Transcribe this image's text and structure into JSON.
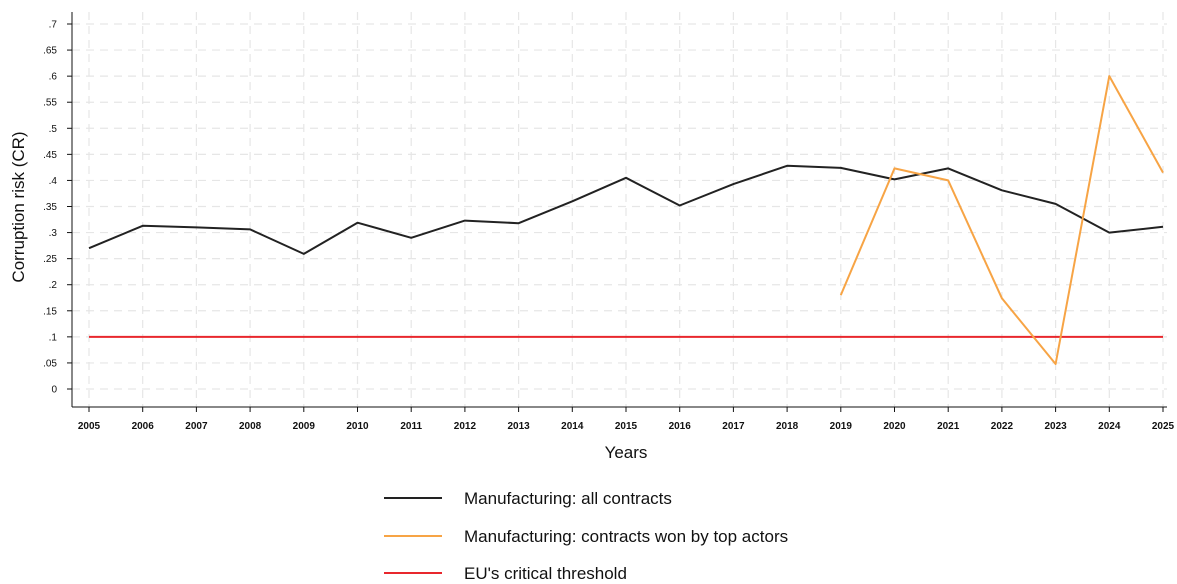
{
  "chart_data": {
    "type": "line",
    "title": "",
    "xlabel": "Years",
    "ylabel": "Corruption risk (CR)",
    "x": [
      2005,
      2006,
      2007,
      2008,
      2009,
      2010,
      2011,
      2012,
      2013,
      2014,
      2015,
      2016,
      2017,
      2018,
      2019,
      2020,
      2021,
      2022,
      2023,
      2024,
      2025
    ],
    "x_tick_labels": [
      "2005",
      "2006",
      "2007",
      "2008",
      "2009",
      "2010",
      "2011",
      "2012",
      "2013",
      "2014",
      "2015",
      "2016",
      "2017",
      "2018",
      "2019",
      "2020",
      "2021",
      "2022",
      "2023",
      "2024",
      "2025"
    ],
    "xlim": [
      2005,
      2025
    ],
    "ylim": [
      0,
      0.7
    ],
    "y_ticks": [
      0,
      0.05,
      0.1,
      0.15,
      0.2,
      0.25,
      0.3,
      0.35,
      0.4,
      0.45,
      0.5,
      0.55,
      0.6,
      0.65,
      0.7
    ],
    "y_tick_labels": [
      "0",
      ".05",
      ".1",
      ".15",
      ".2",
      ".25",
      ".3",
      ".35",
      ".4",
      ".45",
      ".5",
      ".55",
      ".6",
      ".65",
      ".7"
    ],
    "grid": true,
    "legend_position": "bottom",
    "series": [
      {
        "name": "Manufacturing: all contracts",
        "color": "#222222",
        "x": [
          2005,
          2006,
          2007,
          2008,
          2009,
          2010,
          2011,
          2012,
          2013,
          2014,
          2015,
          2016,
          2017,
          2018,
          2019,
          2020,
          2021,
          2022,
          2023,
          2024,
          2025
        ],
        "values": [
          0.27,
          0.313,
          0.31,
          0.306,
          0.259,
          0.319,
          0.29,
          0.323,
          0.318,
          0.36,
          0.405,
          0.352,
          0.393,
          0.428,
          0.424,
          0.402,
          0.423,
          0.381,
          0.355,
          0.3,
          0.311
        ]
      },
      {
        "name": "Manufacturing: contracts won by top actors",
        "color": "#f7a445",
        "x": [
          2019,
          2020,
          2021,
          2022,
          2023,
          2024,
          2025
        ],
        "values": [
          0.18,
          0.423,
          0.4,
          0.174,
          0.048,
          0.6,
          0.415
        ]
      },
      {
        "name": "EU's critical threshold",
        "color": "#e8272d",
        "x": [
          2005,
          2025
        ],
        "values": [
          0.1,
          0.1
        ]
      }
    ]
  }
}
